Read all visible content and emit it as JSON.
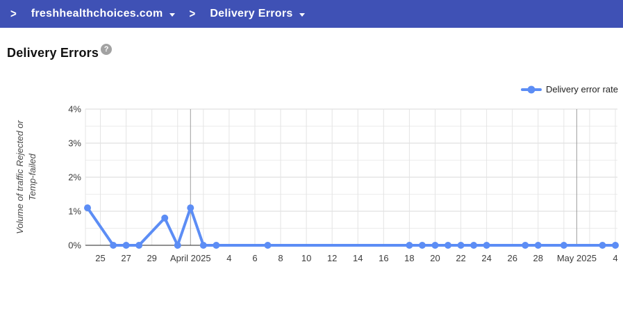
{
  "header": {
    "chevron_glyph": ">",
    "background_color": "#3f51b5",
    "crumbs": [
      {
        "label": "freshhealthchoices.com"
      },
      {
        "label": "Delivery Errors"
      }
    ]
  },
  "page": {
    "title": "Delivery Errors",
    "help_glyph": "?"
  },
  "legend": {
    "label": "Delivery error rate"
  },
  "chart_data": {
    "type": "line",
    "title": "Delivery Errors",
    "ylabel": "Volume of traffic Rejected or Temp-failed",
    "ylabel_lines": [
      "Volume of traffic Rejected or",
      "Temp-failed"
    ],
    "ylim": [
      0,
      4
    ],
    "y_ticks": [
      {
        "value": 0,
        "label": "0%"
      },
      {
        "value": 1,
        "label": "1%"
      },
      {
        "value": 2,
        "label": "2%"
      },
      {
        "value": 3,
        "label": "3%"
      },
      {
        "value": 4,
        "label": "4%"
      }
    ],
    "y_minor_step": 0.5,
    "grid": true,
    "legend_position": "top-right",
    "x_range_days": 41,
    "x_start_date": "Mar 24",
    "x_end_date": "May 4",
    "x_ticks": [
      {
        "day": 1,
        "label": "25"
      },
      {
        "day": 3,
        "label": "27"
      },
      {
        "day": 5,
        "label": "29"
      },
      {
        "day": 8,
        "label": "April 2025"
      },
      {
        "day": 11,
        "label": "4"
      },
      {
        "day": 13,
        "label": "6"
      },
      {
        "day": 15,
        "label": "8"
      },
      {
        "day": 17,
        "label": "10"
      },
      {
        "day": 19,
        "label": "12"
      },
      {
        "day": 21,
        "label": "14"
      },
      {
        "day": 23,
        "label": "16"
      },
      {
        "day": 25,
        "label": "18"
      },
      {
        "day": 27,
        "label": "20"
      },
      {
        "day": 29,
        "label": "22"
      },
      {
        "day": 31,
        "label": "24"
      },
      {
        "day": 33,
        "label": "26"
      },
      {
        "day": 35,
        "label": "28"
      },
      {
        "day": 38,
        "label": "May 2025"
      },
      {
        "day": 41,
        "label": "4"
      }
    ],
    "x_month_line_days": [
      8,
      38
    ],
    "series": [
      {
        "name": "Delivery error rate",
        "color": "#5c8df5",
        "points": [
          {
            "day": 0,
            "date": "Mar 24",
            "value": 1.1
          },
          {
            "day": 2,
            "date": "Mar 26",
            "value": 0
          },
          {
            "day": 3,
            "date": "Mar 27",
            "value": 0
          },
          {
            "day": 4,
            "date": "Mar 28",
            "value": 0
          },
          {
            "day": 6,
            "date": "Mar 30",
            "value": 0.8
          },
          {
            "day": 7,
            "date": "Mar 31",
            "value": 0
          },
          {
            "day": 8,
            "date": "Apr 1",
            "value": 1.1
          },
          {
            "day": 9,
            "date": "Apr 2",
            "value": 0
          },
          {
            "day": 10,
            "date": "Apr 3",
            "value": 0
          },
          {
            "day": 14,
            "date": "Apr 7",
            "value": 0
          },
          {
            "day": 25,
            "date": "Apr 18",
            "value": 0
          },
          {
            "day": 26,
            "date": "Apr 19",
            "value": 0
          },
          {
            "day": 27,
            "date": "Apr 20",
            "value": 0
          },
          {
            "day": 28,
            "date": "Apr 21",
            "value": 0
          },
          {
            "day": 29,
            "date": "Apr 22",
            "value": 0
          },
          {
            "day": 30,
            "date": "Apr 23",
            "value": 0
          },
          {
            "day": 31,
            "date": "Apr 24",
            "value": 0
          },
          {
            "day": 34,
            "date": "Apr 27",
            "value": 0
          },
          {
            "day": 35,
            "date": "Apr 28",
            "value": 0
          },
          {
            "day": 37,
            "date": "Apr 30",
            "value": 0
          },
          {
            "day": 40,
            "date": "May 3",
            "value": 0
          },
          {
            "day": 41,
            "date": "May 4",
            "value": 0
          }
        ]
      }
    ],
    "colors": {
      "series": "#5c8df5",
      "grid_minor": "#ececec",
      "grid_major": "#d8d8d8",
      "grid_vertical": "#e4e4e4",
      "month_line": "#9e9e9e",
      "baseline": "#222222"
    }
  }
}
